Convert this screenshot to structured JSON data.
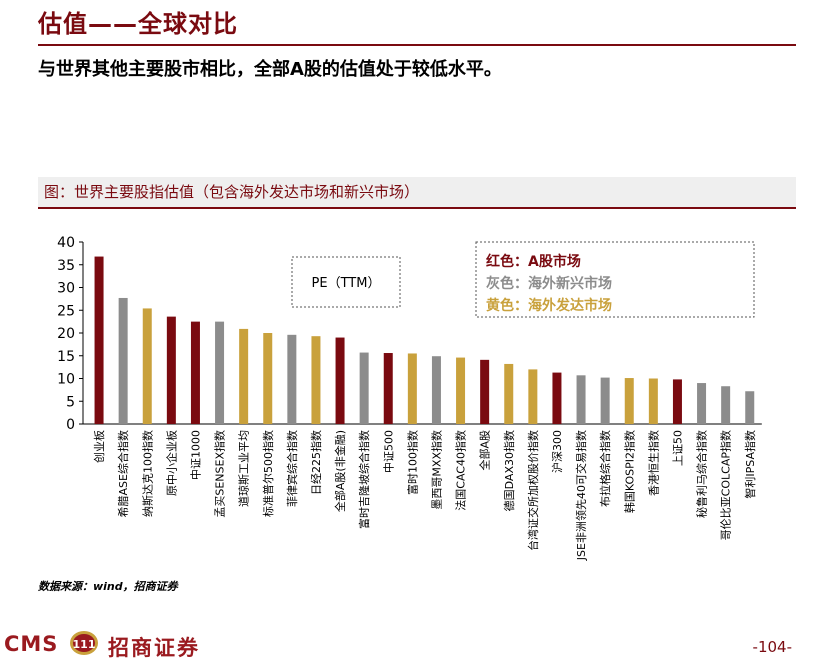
{
  "header": {
    "title": "估值——全球对比",
    "subtitle": "与世界其他主要股市相比，全部A股的估值处于较低水平。"
  },
  "chart_header": "图：世界主要股指估值（包含海外发达市场和新兴市场）",
  "colors": {
    "a_share": "#7a0a10",
    "emerging": "#8c8c8c",
    "developed": "#c9a13c",
    "accent": "#7a0a10"
  },
  "chart_data": {
    "type": "bar",
    "annotation": "PE（TTM）",
    "legend": [
      {
        "label": "红色：",
        "text": "A股市场",
        "group": "a_share"
      },
      {
        "label": "灰色：",
        "text": "海外新兴市场",
        "group": "emerging"
      },
      {
        "label": "黄色：",
        "text": "海外发达市场",
        "group": "developed"
      }
    ],
    "legend_placement": "top-right",
    "ylim": [
      0,
      40
    ],
    "yticks": [
      0,
      5,
      10,
      15,
      20,
      25,
      30,
      35,
      40
    ],
    "grid": false,
    "categories": [
      "创业板",
      "希腊ASE综合指数",
      "纳斯达克100指数",
      "原中小企业板",
      "中证1000",
      "孟买SENSEX指数",
      "道琼斯工业平均",
      "标准普尔500指数",
      "菲律宾综合指数",
      "日经225指数",
      "全部A股(非金融)",
      "富时吉隆坡综合指数",
      "中证500",
      "富时100指数",
      "墨西哥MXX指数",
      "法国CAC40指数",
      "全部A股",
      "德国DAX30指数",
      "台湾证交所加权股价指数",
      "沪深300",
      "JSE非洲领先40可交易指数",
      "布拉格综合指数",
      "韩国KOSPI2指数",
      "香港恒生指数",
      "上证50",
      "秘鲁利马综合指数",
      "哥伦比亚COLCAP指数",
      "智利IPSA指数"
    ],
    "values": [
      36.8,
      27.7,
      25.4,
      23.6,
      22.5,
      22.5,
      20.9,
      20.0,
      19.6,
      19.3,
      19.0,
      15.7,
      15.6,
      15.5,
      14.9,
      14.6,
      14.1,
      13.2,
      12.0,
      11.3,
      10.7,
      10.2,
      10.1,
      10.0,
      9.8,
      9.0,
      8.3,
      7.2
    ],
    "groups": [
      "a_share",
      "emerging",
      "developed",
      "a_share",
      "a_share",
      "emerging",
      "developed",
      "developed",
      "emerging",
      "developed",
      "a_share",
      "emerging",
      "a_share",
      "developed",
      "emerging",
      "developed",
      "a_share",
      "developed",
      "developed",
      "a_share",
      "emerging",
      "emerging",
      "developed",
      "developed",
      "a_share",
      "emerging",
      "emerging",
      "emerging"
    ]
  },
  "source": "数据来源：wind，招商证券",
  "footer": {
    "logo_latin": "CMS",
    "logo_badge": "111",
    "logo_cn": "招商证券",
    "page": "-104-"
  }
}
